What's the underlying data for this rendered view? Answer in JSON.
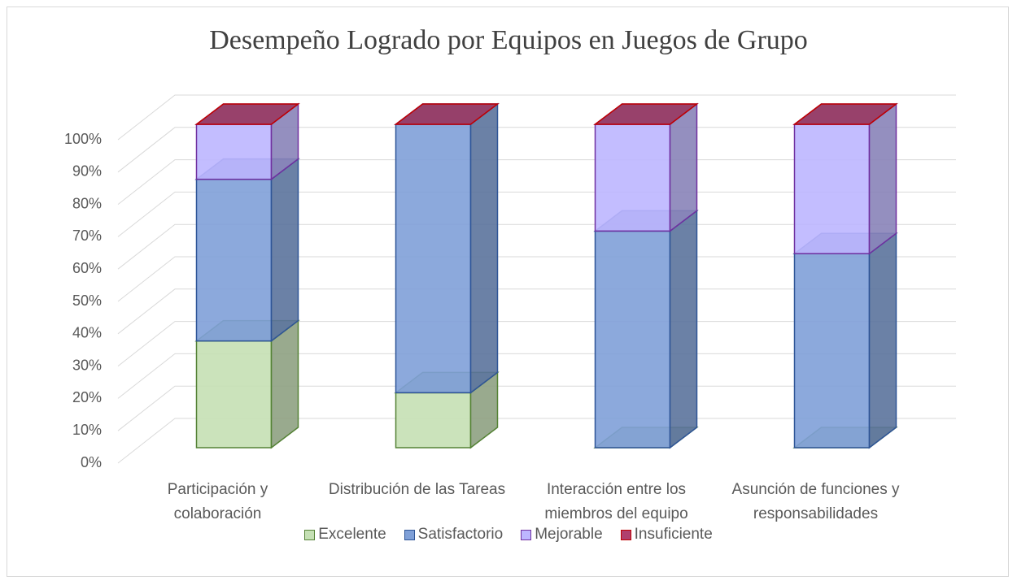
{
  "chart_data": {
    "type": "bar3d_stacked",
    "title": "Desempeño Logrado por Equipos en Juegos de Grupo",
    "categories": [
      "Participación y colaboración",
      "Distribución de las Tareas",
      "Interacción entre los miembros del equipo",
      "Asunción de funciones y responsabilidades"
    ],
    "series": [
      {
        "name": "Excelente",
        "color": "#c5e0b4",
        "edge": "#548235",
        "values": [
          33,
          17,
          0,
          0
        ]
      },
      {
        "name": "Satisfactorio",
        "color": "#7fa0d8",
        "edge": "#2f5597",
        "values": [
          50,
          83,
          67,
          60
        ]
      },
      {
        "name": "Mejorable",
        "color": "#bdb6ff",
        "edge": "#7030a0",
        "values": [
          17,
          0,
          33,
          40
        ]
      },
      {
        "name": "Insuficiente",
        "color": "#b0406e",
        "edge": "#c00000",
        "values": [
          0,
          0,
          0,
          0
        ]
      }
    ],
    "ylim": [
      0,
      100
    ],
    "yticks": [
      {
        "value": 0,
        "label": "0%"
      },
      {
        "value": 10,
        "label": "10%"
      },
      {
        "value": 20,
        "label": "20%"
      },
      {
        "value": 30,
        "label": "30%"
      },
      {
        "value": 40,
        "label": "40%"
      },
      {
        "value": 50,
        "label": "50%"
      },
      {
        "value": 60,
        "label": "60%"
      },
      {
        "value": 70,
        "label": "70%"
      },
      {
        "value": 80,
        "label": "80%"
      },
      {
        "value": 90,
        "label": "90%"
      },
      {
        "value": 100,
        "label": "100%"
      }
    ],
    "grid": true,
    "legend": "bottom"
  }
}
